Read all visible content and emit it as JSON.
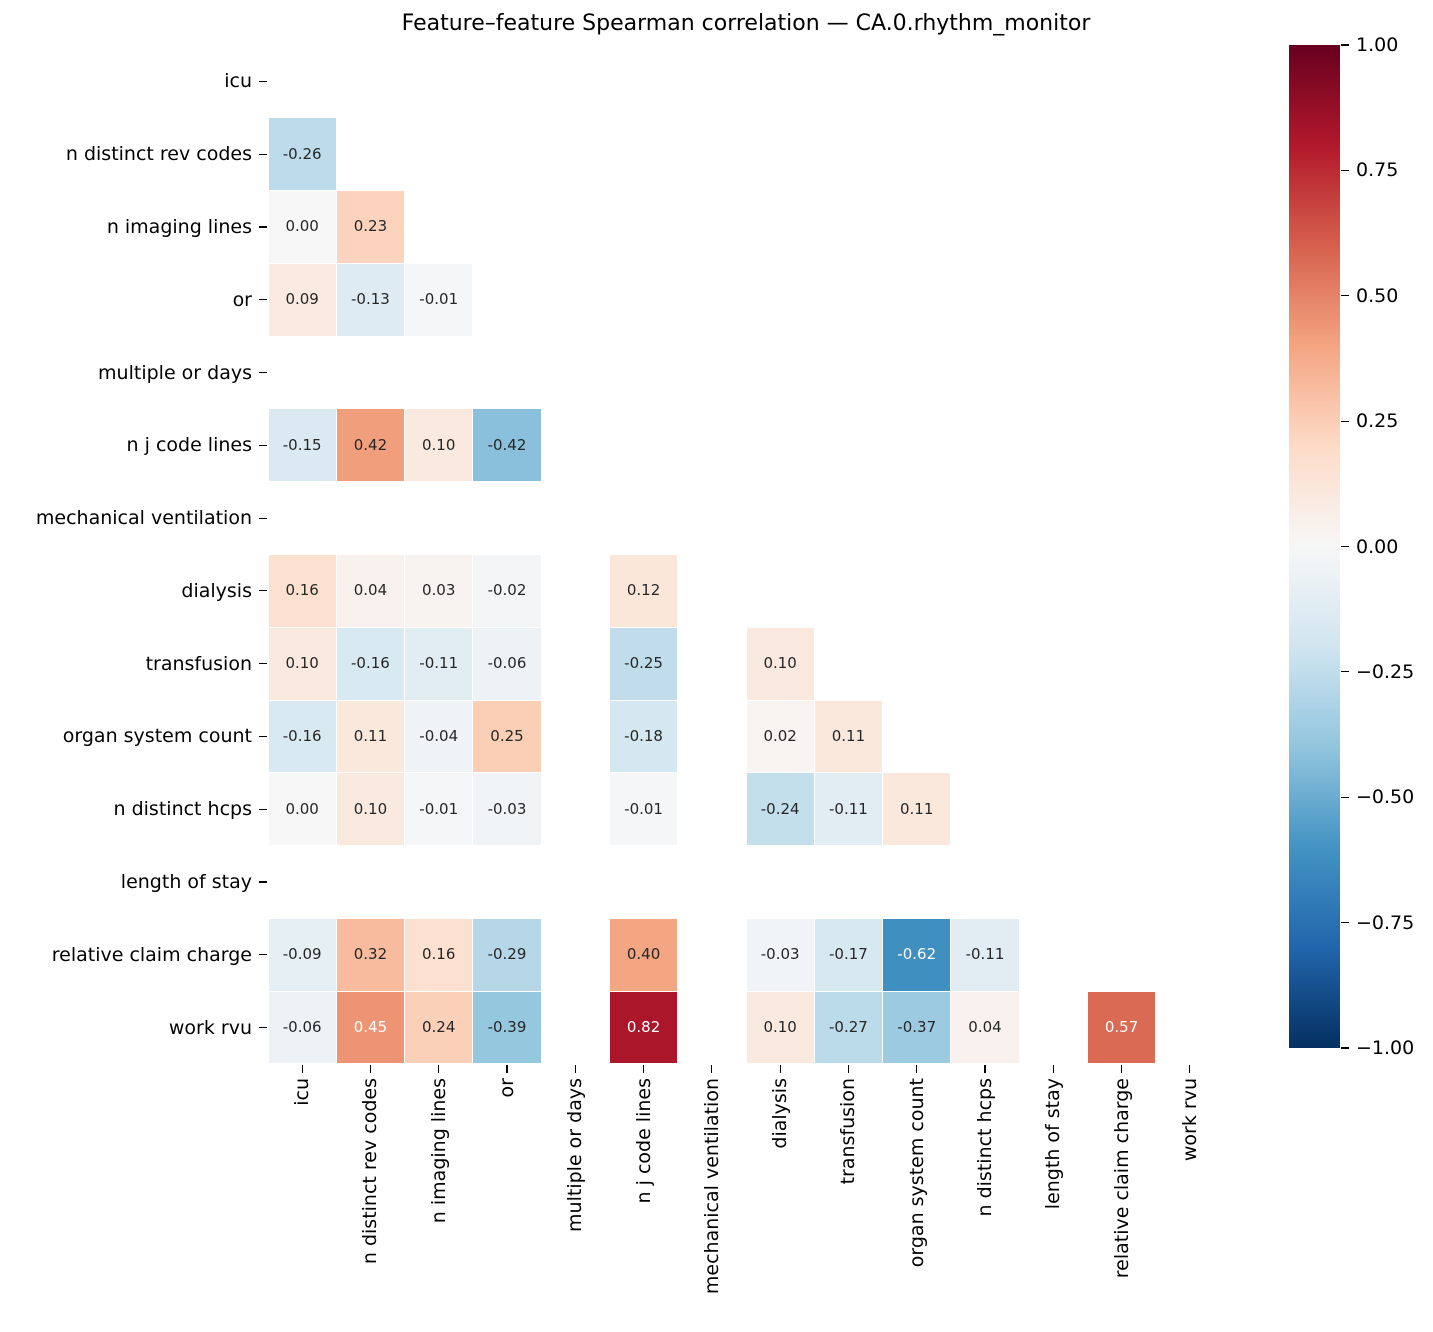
{
  "title": "Feature–feature Spearman correlation — CA.0.rhythm_monitor",
  "chart_data": {
    "type": "heatmap",
    "subtype": "spearman-correlation-lower-triangle",
    "title": "Feature–feature Spearman correlation — CA.0.rhythm_monitor",
    "features": [
      "icu",
      "n distinct rev codes",
      "n imaging lines",
      "or",
      "multiple or days",
      "n j code lines",
      "mechanical ventilation",
      "dialysis",
      "transfusion",
      "organ system count",
      "n distinct hcps",
      "length of stay",
      "relative claim charge",
      "work rvu"
    ],
    "matrix": [
      [
        null,
        null,
        null,
        null,
        null,
        null,
        null,
        null,
        null,
        null,
        null,
        null,
        null,
        null
      ],
      [
        -0.26,
        null,
        null,
        null,
        null,
        null,
        null,
        null,
        null,
        null,
        null,
        null,
        null,
        null
      ],
      [
        0.0,
        0.23,
        null,
        null,
        null,
        null,
        null,
        null,
        null,
        null,
        null,
        null,
        null,
        null
      ],
      [
        0.09,
        -0.13,
        -0.01,
        null,
        null,
        null,
        null,
        null,
        null,
        null,
        null,
        null,
        null,
        null
      ],
      [
        null,
        null,
        null,
        null,
        null,
        null,
        null,
        null,
        null,
        null,
        null,
        null,
        null,
        null
      ],
      [
        -0.15,
        0.42,
        0.1,
        -0.42,
        null,
        null,
        null,
        null,
        null,
        null,
        null,
        null,
        null,
        null
      ],
      [
        null,
        null,
        null,
        null,
        null,
        null,
        null,
        null,
        null,
        null,
        null,
        null,
        null,
        null
      ],
      [
        0.16,
        0.04,
        0.03,
        -0.02,
        null,
        0.12,
        null,
        null,
        null,
        null,
        null,
        null,
        null,
        null
      ],
      [
        0.1,
        -0.16,
        -0.11,
        -0.06,
        null,
        -0.25,
        null,
        0.1,
        null,
        null,
        null,
        null,
        null,
        null
      ],
      [
        -0.16,
        0.11,
        -0.04,
        0.25,
        null,
        -0.18,
        null,
        0.02,
        0.11,
        null,
        null,
        null,
        null,
        null
      ],
      [
        0.0,
        0.1,
        -0.01,
        -0.03,
        null,
        -0.01,
        null,
        -0.24,
        -0.11,
        0.11,
        null,
        null,
        null,
        null
      ],
      [
        null,
        null,
        null,
        null,
        null,
        null,
        null,
        null,
        null,
        null,
        null,
        null,
        null,
        null
      ],
      [
        -0.09,
        0.32,
        0.16,
        -0.29,
        null,
        0.4,
        null,
        -0.03,
        -0.17,
        -0.62,
        -0.11,
        null,
        null,
        null
      ],
      [
        -0.06,
        0.45,
        0.24,
        -0.39,
        null,
        0.82,
        null,
        0.1,
        -0.27,
        -0.37,
        0.04,
        null,
        0.57,
        null
      ]
    ],
    "vmin": -1,
    "vmax": 1,
    "colormap": "RdBu_r",
    "colormap_anchors_neg_to_pos": [
      "#053061",
      "#2166ac",
      "#4393c3",
      "#92c5de",
      "#d1e5f0",
      "#f7f7f7",
      "#fddbc7",
      "#f4a582",
      "#d6604d",
      "#b2182b",
      "#67001f"
    ],
    "colorbar_ticks": [
      1.0,
      0.75,
      0.5,
      0.25,
      0.0,
      -0.25,
      -0.5,
      -0.75,
      -1.0
    ],
    "annotation_decimals": 2,
    "annotation_color_dark": "#262626",
    "annotation_color_light": "#ffffff",
    "legend_position": "right",
    "grid": "off",
    "masked": "upper triangle, diagonal, and empty features (multiple or days, mechanical ventilation, length of stay)"
  }
}
